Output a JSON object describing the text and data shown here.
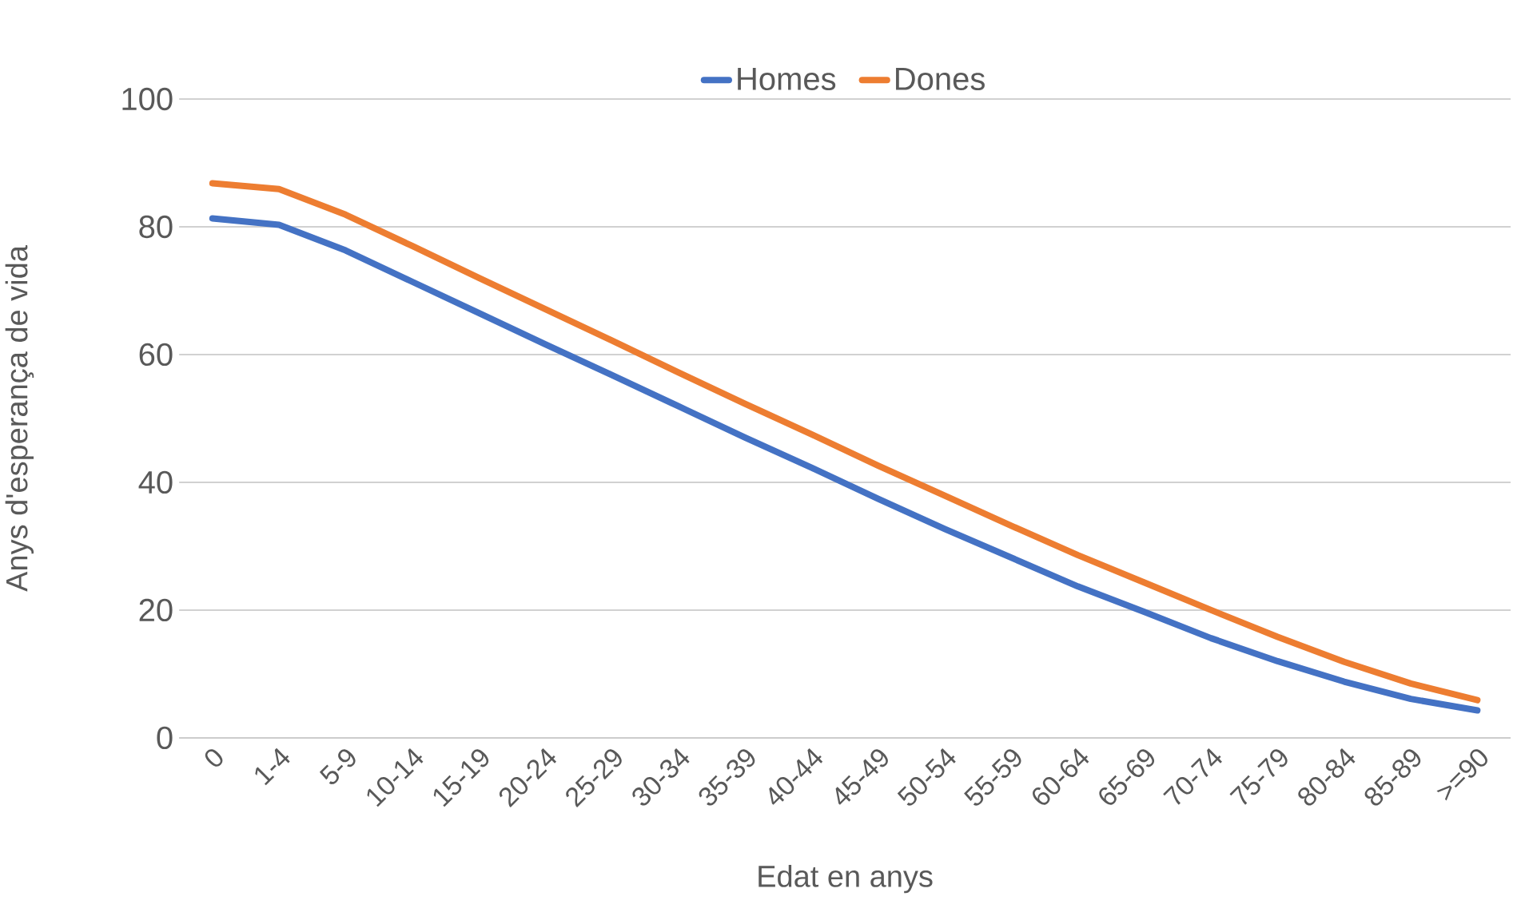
{
  "chart_data": {
    "type": "line",
    "xlabel": "Edat en anys",
    "ylabel": "Anys d'esperança de vida",
    "categories": [
      "0",
      "1-4",
      "5-9",
      "10-14",
      "15-19",
      "20-24",
      "25-29",
      "30-34",
      "35-39",
      "40-44",
      "45-49",
      "50-54",
      "55-59",
      "60-64",
      "65-69",
      "70-74",
      "75-79",
      "80-84",
      "85-89",
      ">=90"
    ],
    "series": [
      {
        "name": "Homes",
        "color": "#4472c4",
        "values": [
          81.3,
          80.3,
          76.3,
          71.4,
          66.5,
          61.6,
          56.8,
          51.9,
          47.0,
          42.3,
          37.4,
          32.7,
          28.2,
          23.7,
          19.7,
          15.6,
          12.0,
          8.8,
          6.1,
          4.3
        ]
      },
      {
        "name": "Dones",
        "color": "#ed7d31",
        "values": [
          86.8,
          85.9,
          81.9,
          77.0,
          72.0,
          67.1,
          62.2,
          57.2,
          52.3,
          47.5,
          42.6,
          37.9,
          33.2,
          28.6,
          24.3,
          20.0,
          15.8,
          11.9,
          8.5,
          5.9
        ]
      }
    ],
    "ylim": [
      0,
      100
    ],
    "yticks": [
      0,
      20,
      40,
      60,
      80,
      100
    ],
    "grid": "y",
    "legend": "top",
    "marker": "none",
    "line_style": "solid"
  }
}
